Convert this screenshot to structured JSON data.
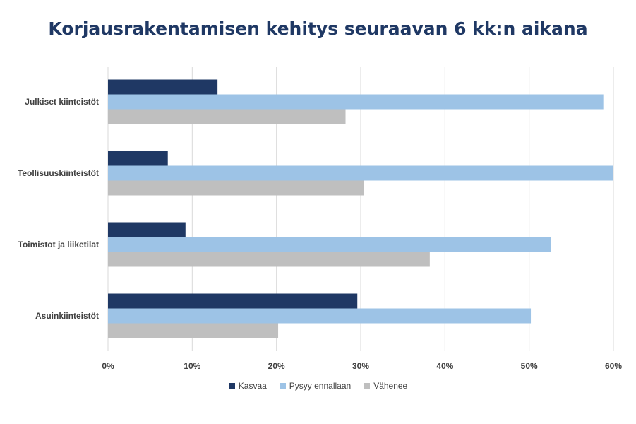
{
  "colors": {
    "title": "#1f3864",
    "kasvaa": "#1f3864",
    "pysyy": "#9dc3e6",
    "vahenee": "#bfbfbf",
    "grid": "#d9d9d9",
    "text": "#404040"
  },
  "chart_data": {
    "type": "bar",
    "orientation": "horizontal",
    "title": "Korjausrakentamisen kehitys seuraavan 6 kk:n aikana",
    "xlabel": "",
    "ylabel": "",
    "categories": [
      "Julkiset kiinteistöt",
      "Teollisuuskiinteistöt",
      "Toimistot ja liiketilat",
      "Asuinkiinteistöt"
    ],
    "series": [
      {
        "name": "Kasvaa",
        "values": [
          13,
          7.1,
          9.2,
          29.6
        ]
      },
      {
        "name": "Pysyy ennallaan",
        "values": [
          58.8,
          60,
          52.6,
          50.2
        ]
      },
      {
        "name": "Vähenee",
        "values": [
          28.2,
          30.4,
          38.2,
          20.2
        ]
      }
    ],
    "xlim": [
      0,
      60
    ],
    "xticks": [
      0,
      10,
      20,
      30,
      40,
      50,
      60
    ],
    "xtick_labels": [
      "0%",
      "10%",
      "20%",
      "30%",
      "40%",
      "50%",
      "60%"
    ],
    "grid": "vertical",
    "legend": "bottom"
  }
}
